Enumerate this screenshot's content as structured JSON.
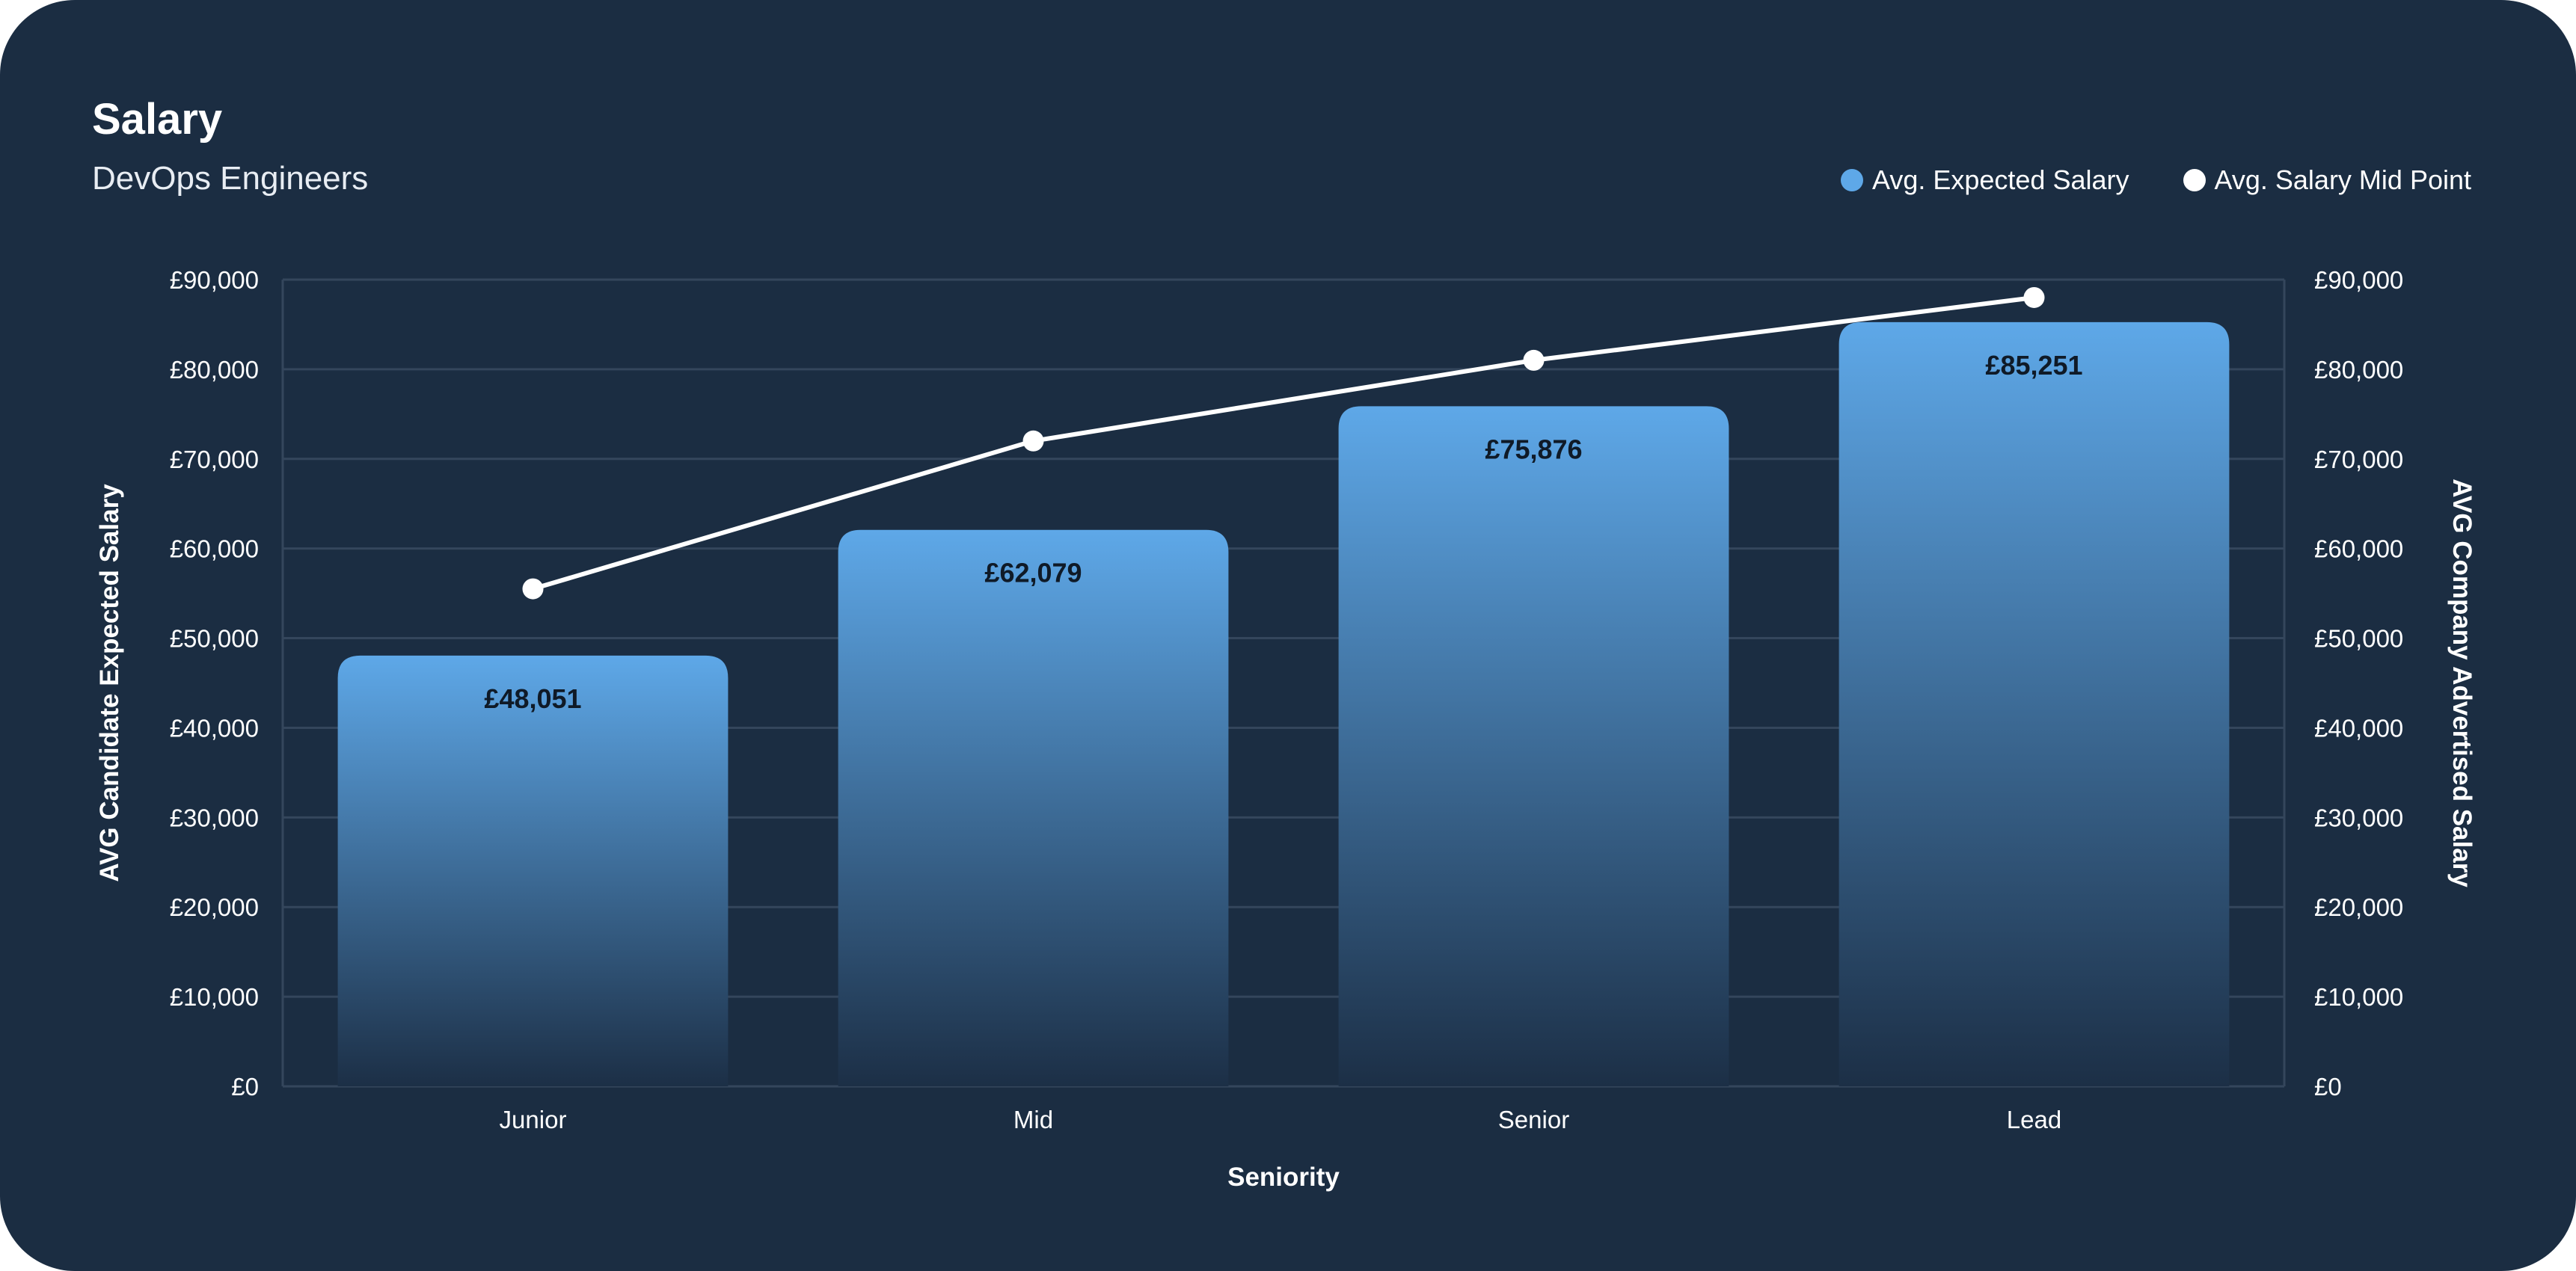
{
  "header": {
    "title": "Salary",
    "subtitle": "DevOps Engineers"
  },
  "colors": {
    "background": "#1b2d42",
    "bar_top": "#5ea8e8",
    "bar_bottom": "#1c2f46",
    "line": "#ffffff",
    "grid": "#34465c"
  },
  "chart_data": {
    "type": "bar",
    "categories": [
      "Junior",
      "Mid",
      "Senior",
      "Lead"
    ],
    "series": [
      {
        "name": "Avg. Expected Salary",
        "type": "bar",
        "axis": "left",
        "values": [
          48051,
          62079,
          75876,
          85251
        ],
        "labels": [
          "£48,051",
          "£62,079",
          "£75,876",
          "£85,251"
        ]
      },
      {
        "name": "Avg. Salary Mid Point",
        "type": "line",
        "axis": "right",
        "values": [
          55500,
          72000,
          81000,
          88000
        ]
      }
    ],
    "xlabel": "Seniority",
    "ylabel": "AVG Candidate Expected Salary",
    "y2label": "AVG Company Advertised Salary",
    "ylim": [
      0,
      90000
    ],
    "y2lim": [
      0,
      90000
    ],
    "yticks": [
      0,
      10000,
      20000,
      30000,
      40000,
      50000,
      60000,
      70000,
      80000,
      90000
    ],
    "ytick_labels": [
      "£0",
      "£10,000",
      "£20,000",
      "£30,000",
      "£40,000",
      "£50,000",
      "£60,000",
      "£70,000",
      "£80,000",
      "£90,000"
    ],
    "grid": true,
    "legend_position": "top-right"
  }
}
